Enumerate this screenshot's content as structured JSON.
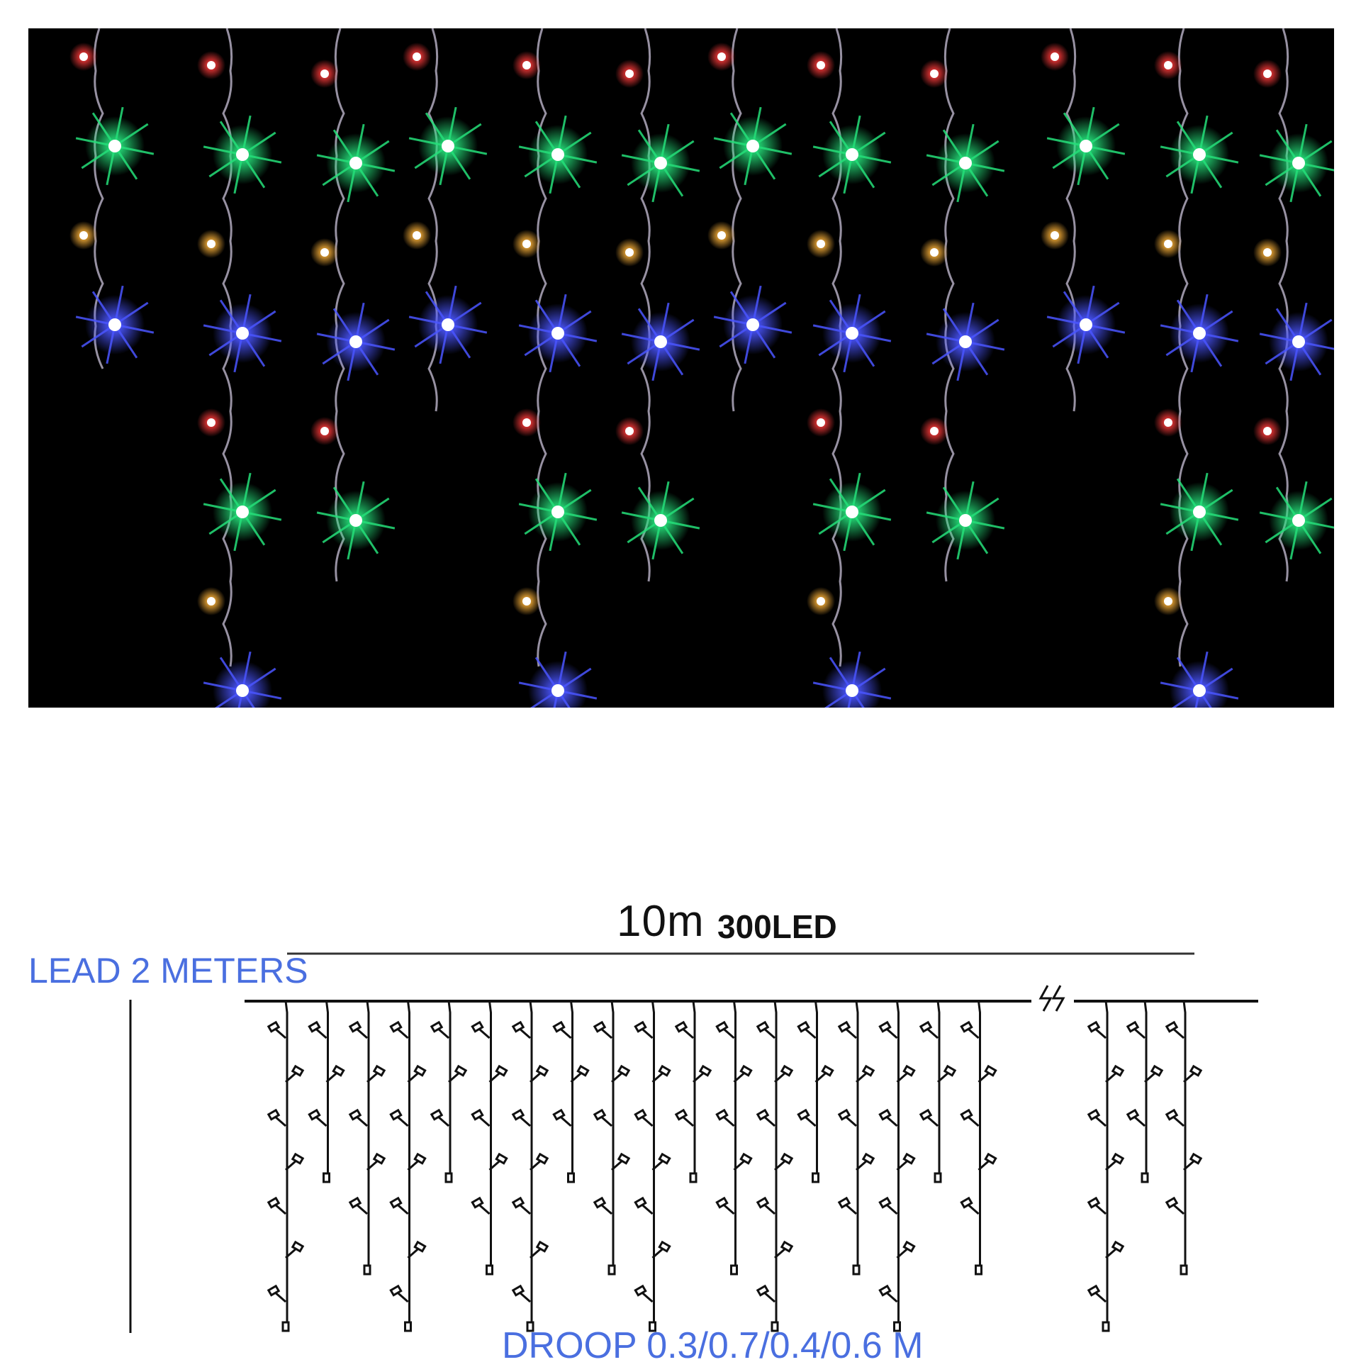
{
  "photo": {
    "background": "#000000",
    "bulb_colors": [
      "#ff3b3b",
      "#25e07a",
      "#ffb43a",
      "#4a55ff"
    ]
  },
  "diagram": {
    "width_label": "10m",
    "led_label": "300LED",
    "lead_label": "LEAD 2 METERS",
    "droop_label": "DROOP 0.3/0.7/0.4/0.6 M",
    "label_color": "#4a6fe0",
    "line_color": "#111111",
    "droop_lengths_m": [
      0.3,
      0.7,
      0.4,
      0.6
    ]
  }
}
